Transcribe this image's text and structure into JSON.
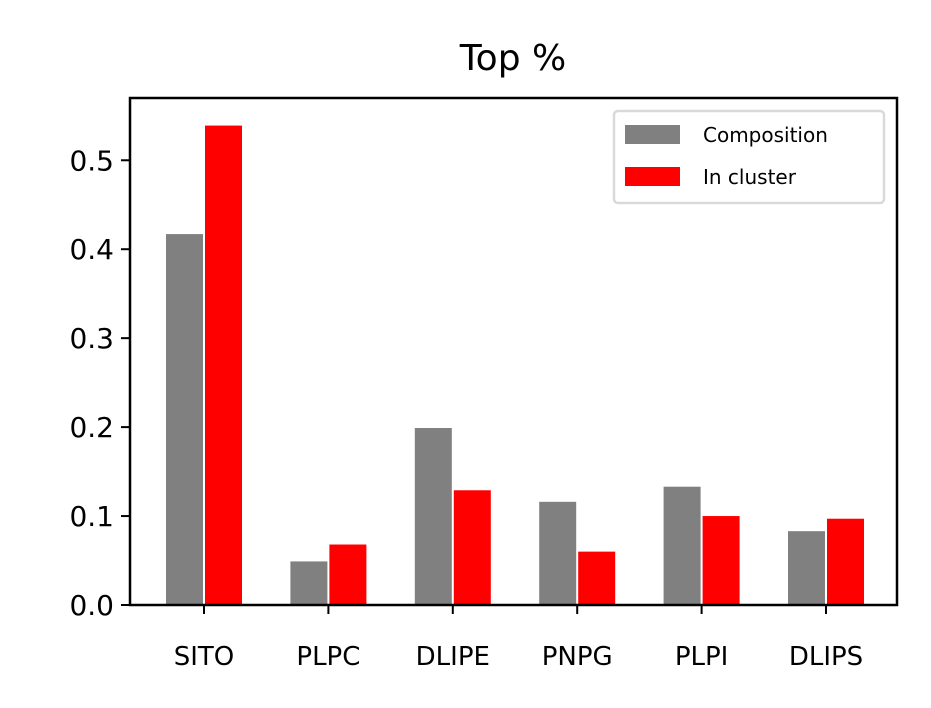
{
  "chart_data": {
    "type": "bar",
    "title": "Top %",
    "xlabel": "",
    "ylabel": "",
    "categories": [
      "SITO",
      "PLPC",
      "DLIPE",
      "PNPG",
      "PLPI",
      "DLIPS"
    ],
    "series": [
      {
        "name": "Composition",
        "color": "#808080",
        "values": [
          0.417,
          0.049,
          0.199,
          0.116,
          0.133,
          0.083
        ]
      },
      {
        "name": "In cluster",
        "color": "#ff0000",
        "values": [
          0.539,
          0.068,
          0.129,
          0.06,
          0.1,
          0.097
        ]
      }
    ],
    "ylim": [
      0,
      0.57
    ],
    "yticks": [
      "0.0",
      "0.1",
      "0.2",
      "0.3",
      "0.4",
      "0.5"
    ],
    "legend_position": "top-right",
    "grid": false
  }
}
